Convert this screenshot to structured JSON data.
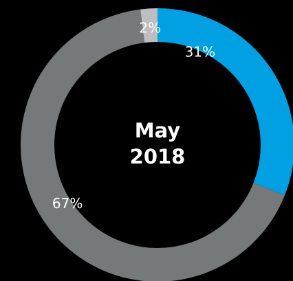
{
  "chart_data": {
    "type": "pie",
    "variant": "donut",
    "center_label": [
      "May",
      "2018"
    ],
    "slices": [
      {
        "label": "31%",
        "value": 31,
        "color": "#00a0e2"
      },
      {
        "label": "67%",
        "value": 67,
        "color": "#75797a"
      },
      {
        "label": "2%",
        "value": 2,
        "color": "#bcbec0"
      }
    ],
    "start": "top",
    "direction": "clockwise"
  }
}
